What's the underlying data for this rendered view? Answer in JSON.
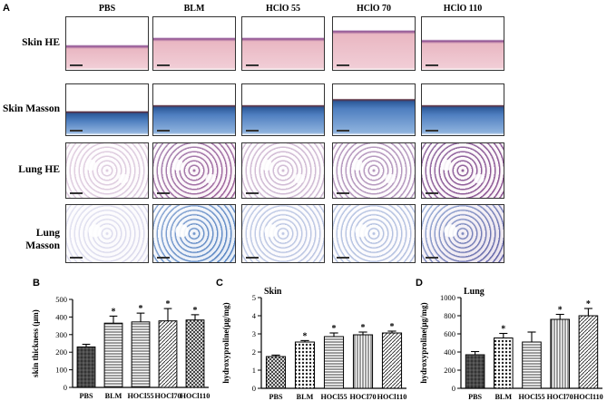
{
  "panels": {
    "a": "A",
    "b": "B",
    "c": "C",
    "d": "D"
  },
  "histology": {
    "columns": [
      "PBS",
      "BLM",
      "HClO 55",
      "HClO 70",
      "HClO 110"
    ],
    "rows": [
      "Skin HE",
      "Skin Masson",
      "Lung HE",
      "Lung Masson"
    ],
    "colors": {
      "he_pink": "#e9b7c2",
      "he_purple": "#8a4a8e",
      "masson_blue": "#4f7fc0",
      "masson_dark": "#2d5a9a",
      "lung_pink": "#d78ab4",
      "lung_purple": "#6b3a83"
    }
  },
  "chart_data": [
    {
      "type": "bar",
      "panel": "B",
      "title": "",
      "xlabel": "",
      "ylabel": "skin thickness (μm)",
      "categories": [
        "PBS",
        "BLM",
        "HOCl55",
        "HOCl70",
        "HOCl110"
      ],
      "values": [
        230,
        365,
        372,
        378,
        383
      ],
      "errors": [
        15,
        40,
        50,
        70,
        30
      ],
      "significant": [
        false,
        true,
        true,
        true,
        true
      ],
      "ylim": [
        0,
        500
      ],
      "yticks": [
        0,
        100,
        200,
        300,
        400,
        500
      ],
      "grid": false
    },
    {
      "type": "bar",
      "panel": "C",
      "title": "Skin",
      "xlabel": "",
      "ylabel": "hydroxyproline(μg/mg)",
      "categories": [
        "PBS",
        "BLM",
        "HOCl55",
        "HOCl70",
        "HOCl110"
      ],
      "values": [
        1.75,
        2.55,
        2.85,
        2.95,
        3.05
      ],
      "errors": [
        0.08,
        0.08,
        0.2,
        0.15,
        0.1
      ],
      "significant": [
        false,
        true,
        true,
        true,
        true
      ],
      "ylim": [
        0,
        5
      ],
      "yticks": [
        0,
        1,
        2,
        3,
        4,
        5
      ],
      "grid": false
    },
    {
      "type": "bar",
      "panel": "D",
      "title": "Lung",
      "xlabel": "",
      "ylabel": "hydroxyproline(μg/mg)",
      "categories": [
        "PBS",
        "BLM",
        "HOCl55",
        "HOCl70",
        "HOCl110"
      ],
      "values": [
        370,
        555,
        510,
        760,
        800
      ],
      "errors": [
        35,
        50,
        110,
        55,
        80
      ],
      "significant": [
        false,
        true,
        false,
        true,
        true
      ],
      "ylim": [
        0,
        1000
      ],
      "yticks": [
        0,
        200,
        400,
        600,
        800,
        1000
      ],
      "grid": false
    }
  ]
}
